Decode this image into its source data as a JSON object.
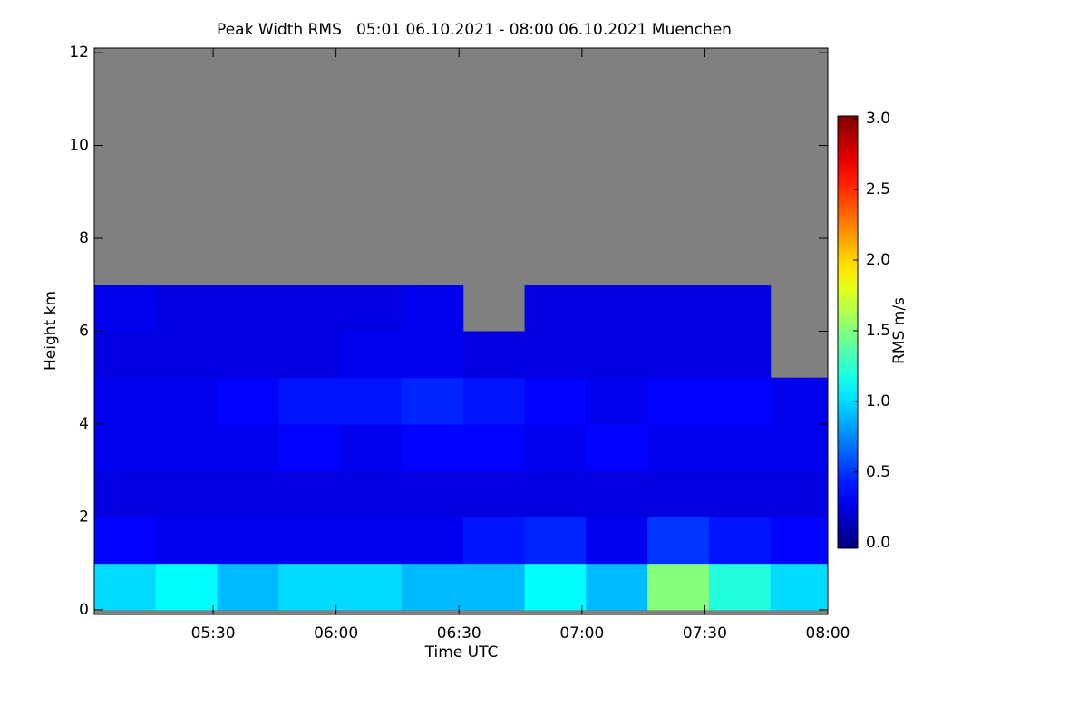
{
  "chart_data": {
    "type": "heatmap",
    "title": "Peak Width RMS   05:01 06.10.2021 - 08:00 06.10.2021 Muenchen",
    "x_label": "Time UTC",
    "y_label": "Height km",
    "colorbar_label": "RMS m/s",
    "colormap": "jet",
    "no_data_color": "#808080",
    "xlim": [
      301,
      480
    ],
    "xticks": [
      {
        "value": 330,
        "label": "05:30"
      },
      {
        "value": 360,
        "label": "06:00"
      },
      {
        "value": 390,
        "label": "06:30"
      },
      {
        "value": 420,
        "label": "07:00"
      },
      {
        "value": 450,
        "label": "07:30"
      },
      {
        "value": 480,
        "label": "08:00"
      }
    ],
    "ylim": [
      -0.1,
      12.1
    ],
    "yticks": [
      0,
      2,
      4,
      6,
      8,
      10,
      12
    ],
    "clim": [
      -0.04,
      3.02
    ],
    "cticks": [
      {
        "value": 0,
        "label": "0.0"
      },
      {
        "value": 0.5,
        "label": "0.5"
      },
      {
        "value": 1,
        "label": "1.0"
      },
      {
        "value": 1.5,
        "label": "1.5"
      },
      {
        "value": 2,
        "label": "2.0"
      },
      {
        "value": 2.5,
        "label": "2.5"
      },
      {
        "value": 3,
        "label": "3.0"
      }
    ],
    "x_bins": [
      301,
      316,
      331,
      346,
      361,
      376,
      391,
      406,
      421,
      436,
      451,
      466,
      480
    ],
    "y_bins": [
      0,
      1,
      2,
      3,
      4,
      5,
      6,
      7
    ],
    "z": [
      [
        1.0,
        1.1,
        0.9,
        1.0,
        1.0,
        0.9,
        0.9,
        1.1,
        0.9,
        1.5,
        1.2,
        1.0
      ],
      [
        0.35,
        0.3,
        0.3,
        0.3,
        0.3,
        0.3,
        0.4,
        0.45,
        0.3,
        0.5,
        0.4,
        0.35
      ],
      [
        0.25,
        0.25,
        0.25,
        0.25,
        0.25,
        0.25,
        0.25,
        0.25,
        0.25,
        0.25,
        0.25,
        0.25
      ],
      [
        0.3,
        0.3,
        0.3,
        0.35,
        0.3,
        0.35,
        0.35,
        0.3,
        0.35,
        0.3,
        0.3,
        0.3
      ],
      [
        0.3,
        0.3,
        0.35,
        0.4,
        0.4,
        0.45,
        0.4,
        0.35,
        0.3,
        0.35,
        0.35,
        0.3
      ],
      [
        0.25,
        0.25,
        0.25,
        0.25,
        0.3,
        0.3,
        0.25,
        0.25,
        0.25,
        0.25,
        0.25,
        null
      ],
      [
        0.3,
        0.25,
        0.25,
        0.25,
        0.25,
        0.3,
        null,
        0.25,
        0.25,
        0.25,
        0.25,
        null
      ]
    ]
  }
}
